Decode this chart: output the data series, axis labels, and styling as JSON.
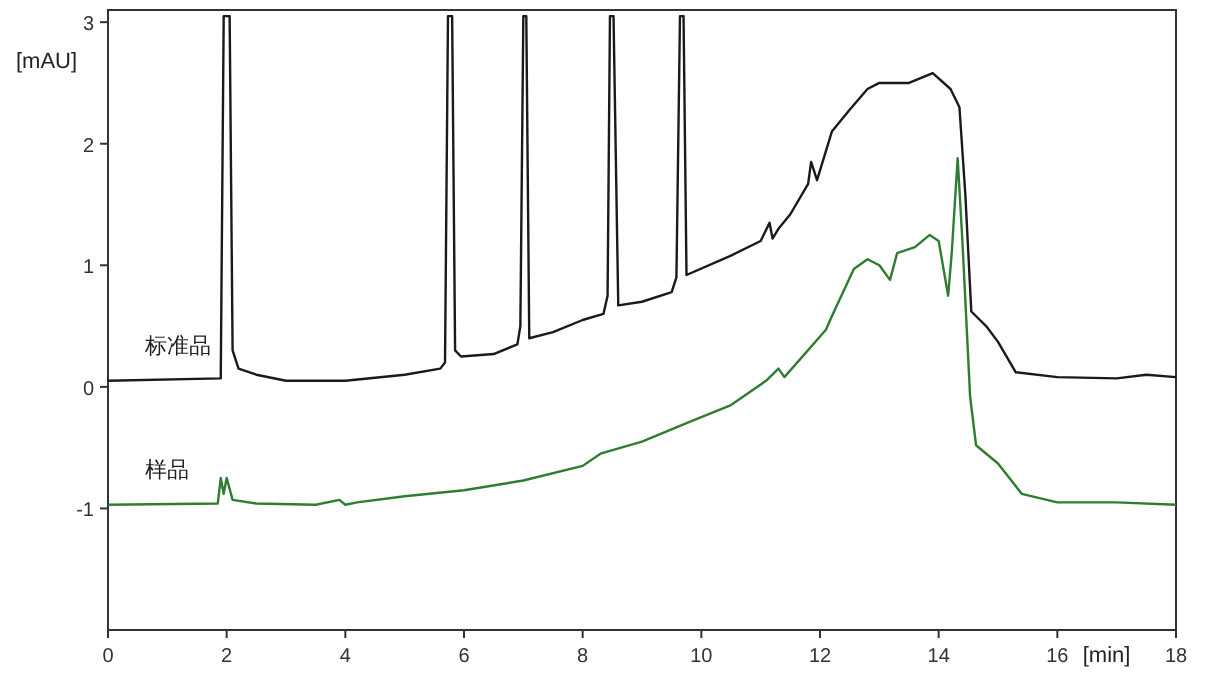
{
  "chart_data": {
    "type": "line",
    "xlabel": "[min]",
    "ylabel": "[mAU]",
    "xlim": [
      0,
      18
    ],
    "ylim": [
      -2,
      3.1
    ],
    "xticks": [
      0,
      2,
      4,
      6,
      8,
      10,
      12,
      14,
      16,
      18
    ],
    "yticks": [
      -1,
      0,
      1,
      2,
      3
    ],
    "grid": false,
    "series": [
      {
        "name": "标准品",
        "color": "#1a1a1a",
        "x": [
          0,
          1.9,
          1.95,
          2.05,
          2.1,
          2.2,
          2.5,
          3,
          4,
          5,
          5.6,
          5.68,
          5.73,
          5.8,
          5.85,
          5.95,
          6.5,
          6.9,
          6.95,
          7.0,
          7.05,
          7.1,
          7.5,
          8,
          8.35,
          8.42,
          8.46,
          8.52,
          8.6,
          9.0,
          9.5,
          9.58,
          9.64,
          9.7,
          9.75,
          10.5,
          11,
          11.15,
          11.2,
          11.3,
          11.5,
          11.8,
          11.85,
          11.95,
          12.2,
          12.5,
          12.8,
          13,
          13.5,
          13.9,
          14.2,
          14.35,
          14.45,
          14.55,
          14.8,
          15,
          15.3,
          16,
          17,
          17.5,
          18
        ],
        "values": [
          0.05,
          0.07,
          3.05,
          3.05,
          0.3,
          0.15,
          0.1,
          0.05,
          0.05,
          0.1,
          0.15,
          0.2,
          3.05,
          3.05,
          0.3,
          0.25,
          0.27,
          0.35,
          0.5,
          3.05,
          3.05,
          0.4,
          0.45,
          0.55,
          0.6,
          0.75,
          3.05,
          3.05,
          0.67,
          0.7,
          0.78,
          0.9,
          3.05,
          3.05,
          0.92,
          1.08,
          1.2,
          1.35,
          1.22,
          1.3,
          1.42,
          1.67,
          1.85,
          1.7,
          2.1,
          2.28,
          2.45,
          2.5,
          2.5,
          2.58,
          2.45,
          2.3,
          1.58,
          0.62,
          0.5,
          0.37,
          0.12,
          0.08,
          0.07,
          0.1,
          0.08
        ]
      },
      {
        "name": "样品",
        "color": "#2e7d32",
        "x": [
          0,
          1.85,
          1.9,
          1.95,
          2.0,
          2.1,
          2.5,
          3.5,
          3.9,
          4.0,
          4.2,
          5,
          6,
          7,
          8,
          8.3,
          9.0,
          9.74,
          10.5,
          11.09,
          11.3,
          11.4,
          12.1,
          12.2,
          12.57,
          12.8,
          13.0,
          13.18,
          13.3,
          13.6,
          13.85,
          14.0,
          14.16,
          14.22,
          14.32,
          14.4,
          14.53,
          14.63,
          15.0,
          15.4,
          16,
          17,
          18
        ],
        "values": [
          -0.97,
          -0.96,
          -0.75,
          -0.88,
          -0.75,
          -0.93,
          -0.96,
          -0.97,
          -0.93,
          -0.97,
          -0.95,
          -0.9,
          -0.85,
          -0.77,
          -0.65,
          -0.55,
          -0.45,
          -0.3,
          -0.15,
          0.05,
          0.15,
          0.08,
          0.47,
          0.58,
          0.97,
          1.05,
          1.0,
          0.88,
          1.1,
          1.15,
          1.25,
          1.2,
          0.75,
          1.1,
          1.88,
          1.2,
          -0.08,
          -0.48,
          -0.63,
          -0.88,
          -0.95,
          -0.95,
          -0.97
        ]
      }
    ]
  }
}
